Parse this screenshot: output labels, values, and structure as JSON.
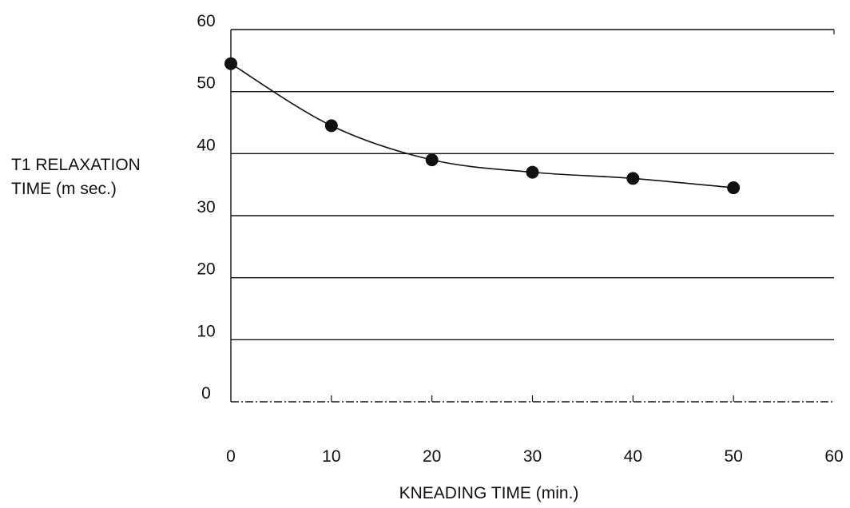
{
  "chart_data": {
    "type": "line",
    "ylabel_lines": [
      "T1 RELAXATION",
      "TIME (m sec.)"
    ],
    "xlabel": "KNEADING TIME (min.)",
    "xlim": [
      0,
      60
    ],
    "ylim": [
      0,
      60
    ],
    "xticks": [
      0,
      10,
      20,
      30,
      40,
      50,
      60
    ],
    "yticks": [
      0,
      10,
      20,
      30,
      40,
      50,
      60
    ],
    "grid": "horizontal",
    "markers": "filled-circle",
    "color": "#111111",
    "series": [
      {
        "x": [
          0,
          10,
          20,
          30,
          40,
          50
        ],
        "y": [
          54.5,
          44.5,
          39,
          37,
          36,
          34.5
        ]
      }
    ]
  }
}
